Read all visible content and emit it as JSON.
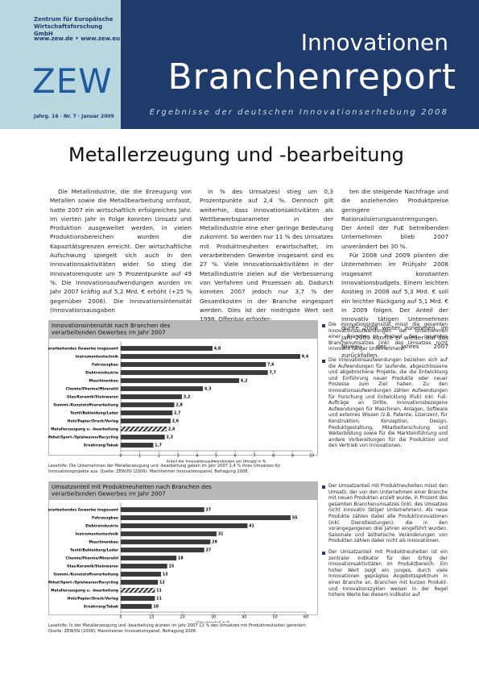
{
  "header": {
    "institute": "Zentrum für Europäische Wirtschaftsforschung GmbH",
    "urls": "www.zew.de • www.zew.eu",
    "logo": "ZEW",
    "series": "Innovationen",
    "title": "Branchenreport",
    "subtitle": "Ergebnisse der deutschen Innovationserhebung 2008",
    "issue": "Jahrg. 16 · Nr. 7 · Januar 2009"
  },
  "title": "Metallerzeugung und -bearbeitung",
  "columns": [
    [
      "Die Metallindustrie, die die Erzeugung von Metallen sowie die Metallbearbeitung umfasst, hatte 2007 ein wirtschaftlich erfolgreiches Jahr. Im vierten Jahr in Folge konnten Umsatz und Produktion ausgeweitet werden, in vielen Produktionsbereichen wurden die Kapazitätsgrenzen erreicht. Der wirtschaftliche Aufschwung spiegelt sich auch in den Innovationsaktivitäten wider. So stieg die Innovatorenquote um 5 Prozentpunkte auf 49 %. Die Innovationsaufwendungen wurden im Jahr 2007 kräftig auf 5,2 Mrd. € erhöht (+25 % gegenüber 2006). Die Innovationsintensität (Innovationsausgaben"
    ],
    [
      "in % des Umsatzes) stieg um 0,3 Prozentpunkte auf 2,4 %. Dennoch gilt weiterhin, dass Innovationsaktivitäten als Wettbewerbsparameter in der Metallindustrie eine eher geringe Bedeutung zukommt. So werden nur 11 % des Umsatzes mit Produktneuheiten erwirtschaftet, im verarbeitenden Gewerbe insgesamt sind es 27 %. Viele Innovationsaktivitäten in der Metallindustrie zielen auf die Verbesserung von Verfahren und Prozessen ab. Dadurch konnten 2007 jedoch nur 3,7 % der Gesamtkosten in der Branche eingespart werden. Dies ist der niedrigste Wert seit 1998. Offenbar erforder-"
    ],
    [
      "ten die steigende Nachfrage und die anziehenden Produktpreise geringere Rationalisierungsanstrengungen. Der Anteil der FuE betreibenden Unternehmen blieb 2007 unverändert bei 30 %.",
      "Für 2008 und 2009 planten die Unternehmen im Frühjahr 2008 insgesamt konstanten Innovationsbudgets. Einem leichten Anstieg in 2008 auf 5,3 Mrd. € soll ein leichter Rückgang auf 5,1 Mrd. € in 2009 folgen. Der Anteil der innovativ tätigen Unternehmen dürfte 2008 weiter zunehmen, im Jahr 2009 könnte er wieder auf das Niveau des Jahres 2007 zurückfallen."
    ]
  ],
  "notes": [
    [
      "Die Innovationsintensität misst die gesamten Innovationsaufwendungen der Unternehmen einer Branche in Prozent des gesamten Branchenumsatzes (inkl. des Umsatzes nicht innovativ tätiger Unternehmen).",
      "Die Innovationsaufwendungen beziehen sich auf die Aufwendungen für laufende, abgeschlossene und abgebrochene Projekte, die die Entwicklung und Einführung neuer Produkte oder neuer Prozesse zum Ziel haben. Zu den Innovationsaufwendungen zählen Aufwendungen für Forschung und Entwicklung (FuE) inkl. FuE-Aufträge an Dritte, Innovationsbezogene Aufwendungen für Maschinen, Anlagen, Software und externes Wissen (z.B. Patente, Lizenzen), für Konstruktion, Konzeption, Design, Produktgestaltung, Mitarbeiterschulung und Weiterbildung sowie für die Markteinführung und andere Vorbereitungen für die Produktion und den Vertrieb von Innovationen."
    ],
    [
      "Der Umsatzanteil mit Produktneuheiten misst den Umsatz, der von den Unternehmen einer Branche mit neuen Produkten erzielt wurde, in Prozent des gesamten Branchenumsatzes (inkl. des Umsatzes nicht innovativ tätiger Unternehmen). Als neue Produkte zählen dabei alle Produktinnovationen (inkl. Dienstleistungen), die in den vorangegangenen drei Jahren eingeführt wurden. Saisonale und ästhetische Veränderungen von Produkten zählen dabei nicht als Innovationen.",
      "Der Umsatzanteil mit Produktneuheiten ist ein zentraler Indikator für den Erfolg der Innovationsaktivitäten im Produktbereich. Ein hoher Wert zeigt ein junges, durch viele Innovationen geprägtes Angebotsspektrum in einer Branche an. Branchen mit kurzen Produkt- und Innovationszyklen weisen in der Regel höhere Werte bei diesem Indikator auf."
    ]
  ],
  "captions": [
    "Lesehilfe: Die Unternehmen der Metallerzeugung und -bearbeitung gaben im Jahr 2007 2,4 % ihres Umsatzes für Innovationsprojekte aus. Quelle: ZEW/ISI (2009): Mannheimer Innovationspanel, Befragung 2008.",
    "Lesehilfe: In der Metallerzeugung und -bearbeitung wurden im Jahr 2007 11 % des Umsatzes mit Produktneuheiten generiert. Quelle: ZEW/ISI (2009): Mannheimer Innovationspanel, Befragung 2008."
  ],
  "chart_data": [
    {
      "type": "hbar",
      "title": "Innovationsintensität nach Branchen des verarbeitenden Gewerbes im Jahr 2007",
      "xlabel": "Anteil der Innovationsaufwendungen am Umsatz in %",
      "categories": [
        "Verarbeitendes Gewerbe insgesamt",
        "Instrumententechnik",
        "Fahrzeugbau",
        "Elektroindustrie",
        "Maschinenbau",
        "Chemie/Pharma/Mineralöl",
        "Glas/Keramik/Steinwaren",
        "Gummi-/Kunststoffverarbeitung",
        "Textil/Bekleidung/Leder",
        "Holz/Papier/Druck/Verlag",
        "Metallerzeugung u. -bearbeitung",
        "Möbel/Sport-/Spielwaren/Recycling",
        "Ernährung/Tabak"
      ],
      "values": [
        4.8,
        9.4,
        7.6,
        7.7,
        6.2,
        4.3,
        3.2,
        2.8,
        2.7,
        2.6,
        2.4,
        2.3,
        1.7
      ],
      "value_labels": [
        "4,8",
        "9,4",
        "7,6",
        "7,7",
        "6,2",
        "4,3",
        "3,2",
        "2,8",
        "2,7",
        "2,6",
        "2,4",
        "2,3",
        "1,7"
      ],
      "color": "#3a3a3a",
      "highlight": 10,
      "xlim": [
        0,
        10
      ],
      "xticks": [
        0,
        1,
        2,
        3,
        4,
        5,
        6,
        7,
        8,
        9,
        10
      ]
    },
    {
      "type": "hbar",
      "title": "Umsatzanteil mit Produktneuheiten nach Branchen des verarbeitenden Gewerbes im Jahr 2007",
      "xlabel": "Umsatzanteil in %",
      "categories": [
        "Verarbeitendes Gewerbe insgesamt",
        "Fahrzeugbau",
        "Elektroindustrie",
        "Instrumententechnik",
        "Maschinenbau",
        "Textil/Bekleidung/Leder",
        "Chemie/Pharma/Mineralöl",
        "Glas/Keramik/Steinwaren",
        "Gummi-/Kunststoffverarbeitung",
        "Möbel/Sport-/Spielwaren/Recycling",
        "Metallerzeugung u. -bearbeitung",
        "Holz/Papier/Druck/Verlag",
        "Ernährung/Tabak"
      ],
      "values": [
        27,
        55,
        41,
        31,
        29,
        27,
        18,
        15,
        13,
        12,
        11,
        11,
        10
      ],
      "color": "#3a3a3a",
      "highlight": 10,
      "xlim": [
        0,
        60
      ],
      "xticks": [
        0,
        10,
        20,
        30,
        40,
        50,
        60
      ]
    }
  ]
}
